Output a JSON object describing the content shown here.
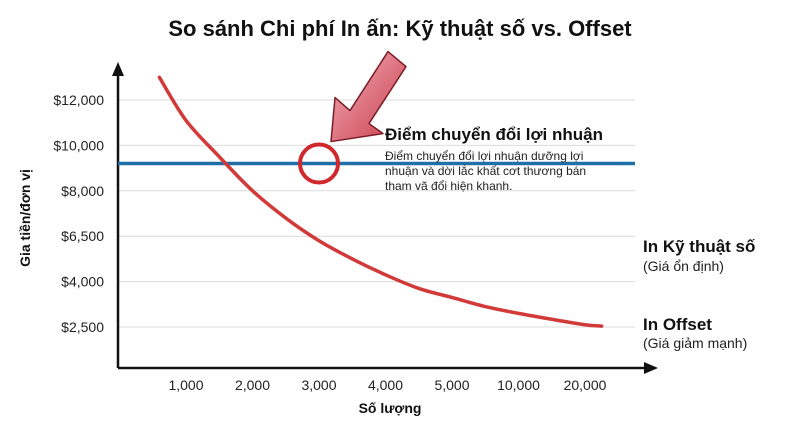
{
  "chart_data": {
    "type": "line",
    "title": "So sánh Chi phí In ấn: Kỹ thuật số vs. Offset",
    "xlabel": "Số lượng",
    "ylabel": "Gia tiền/đơn vị",
    "x_ticks": [
      "1,000",
      "2,000",
      "3,000",
      "4,000",
      "5,000",
      "10,000",
      "20,000"
    ],
    "y_ticks": [
      "$2,500",
      "$4,000",
      "$6,500",
      "$8,000",
      "$10,000",
      "$12,000"
    ],
    "grid": true,
    "series": [
      {
        "name": "In Kỹ thuật số",
        "note": "(Giá ổn định)",
        "color": "#1f6fa8",
        "style": "flat",
        "value_level": 3.6
      },
      {
        "name": "In Offset",
        "note": "(Giá giảm mạnh)",
        "color": "#d23a3a",
        "style": "curve",
        "points": [
          {
            "x": 0.6,
            "y": 5.5
          },
          {
            "x": 1.0,
            "y": 4.55
          },
          {
            "x": 1.5,
            "y": 3.75
          },
          {
            "x": 2.0,
            "y": 3.0
          },
          {
            "x": 2.5,
            "y": 2.4
          },
          {
            "x": 3.0,
            "y": 1.9
          },
          {
            "x": 3.5,
            "y": 1.5
          },
          {
            "x": 4.0,
            "y": 1.15
          },
          {
            "x": 4.5,
            "y": 0.85
          },
          {
            "x": 5.0,
            "y": 0.65
          },
          {
            "x": 5.5,
            "y": 0.45
          },
          {
            "x": 6.0,
            "y": 0.3
          },
          {
            "x": 6.5,
            "y": 0.17
          },
          {
            "x": 7.0,
            "y": 0.05
          },
          {
            "x": 7.25,
            "y": 0.02
          }
        ]
      }
    ],
    "annotation": {
      "title": "Điểm chuyển đổi lợi nhuận",
      "lines": [
        "Điểm chuyển đổi lợi nhuận dưỡng lợi",
        "nhuận và dời lắc khất cơt thương bán",
        "tham vã đổi hiện khanh."
      ],
      "at_x": 3.0,
      "at_y": 3.6,
      "arrow_color": "#d9606d"
    }
  }
}
